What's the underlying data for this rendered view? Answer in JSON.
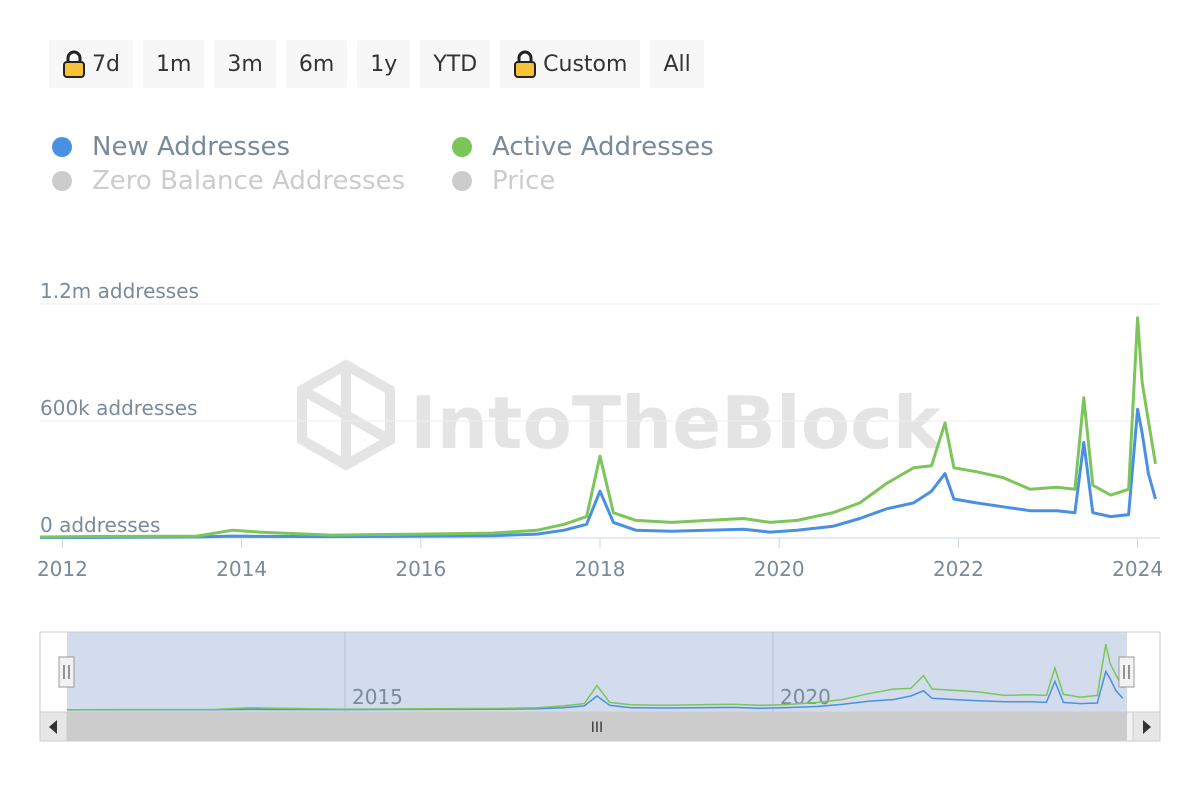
{
  "range_selector": {
    "buttons": [
      {
        "label": "7d",
        "locked": true
      },
      {
        "label": "1m",
        "locked": false
      },
      {
        "label": "3m",
        "locked": false
      },
      {
        "label": "6m",
        "locked": false
      },
      {
        "label": "1y",
        "locked": false
      },
      {
        "label": "YTD",
        "locked": false
      },
      {
        "label": "Custom",
        "locked": true
      },
      {
        "label": "All",
        "locked": false
      }
    ]
  },
  "legend": {
    "items": [
      {
        "label": "New Addresses",
        "color": "#4a90e2",
        "visible": true
      },
      {
        "label": "Active Addresses",
        "color": "#7cc55a",
        "visible": true
      },
      {
        "label": "Zero Balance Addresses",
        "color": "#cccccc",
        "visible": false
      },
      {
        "label": "Price",
        "color": "#cccccc",
        "visible": false
      }
    ]
  },
  "watermark": "IntoTheBlock",
  "navigator": {
    "labels": [
      "2015",
      "2020"
    ],
    "scroll_grip": "III"
  },
  "chart_data": {
    "type": "line",
    "ylim": [
      0,
      1200000
    ],
    "y_ticks": [
      {
        "value": 0,
        "label": "0 addresses"
      },
      {
        "value": 600000,
        "label": "600k addresses"
      },
      {
        "value": 1200000,
        "label": "1.2m addresses"
      }
    ],
    "x_ticks": [
      "2012",
      "2014",
      "2016",
      "2018",
      "2020",
      "2022",
      "2024"
    ],
    "xlim": [
      2011.75,
      2024.25
    ],
    "grid": true,
    "legend_position": "top-left",
    "series": [
      {
        "name": "New Addresses",
        "color": "#4a90e2",
        "x": [
          2011.75,
          2012.5,
          2013.5,
          2013.9,
          2014.2,
          2015.0,
          2016.0,
          2016.8,
          2017.3,
          2017.6,
          2017.85,
          2018.0,
          2018.15,
          2018.4,
          2018.8,
          2019.2,
          2019.6,
          2019.9,
          2020.2,
          2020.6,
          2020.9,
          2021.2,
          2021.5,
          2021.7,
          2021.85,
          2021.95,
          2022.2,
          2022.5,
          2022.8,
          2023.1,
          2023.3,
          2023.4,
          2023.5,
          2023.7,
          2023.9,
          2024.0,
          2024.05,
          2024.12,
          2024.2
        ],
        "y": [
          2000,
          3000,
          5000,
          10000,
          8000,
          7000,
          10000,
          12000,
          20000,
          40000,
          70000,
          240000,
          80000,
          40000,
          35000,
          40000,
          45000,
          30000,
          40000,
          60000,
          100000,
          150000,
          180000,
          240000,
          330000,
          200000,
          180000,
          160000,
          140000,
          140000,
          130000,
          490000,
          130000,
          110000,
          120000,
          660000,
          540000,
          330000,
          200000
        ]
      },
      {
        "name": "Active Addresses",
        "color": "#7cc55a",
        "x": [
          2011.75,
          2012.5,
          2013.5,
          2013.9,
          2014.2,
          2015.0,
          2016.0,
          2016.8,
          2017.3,
          2017.6,
          2017.85,
          2018.0,
          2018.15,
          2018.4,
          2018.8,
          2019.2,
          2019.6,
          2019.9,
          2020.2,
          2020.6,
          2020.9,
          2021.2,
          2021.5,
          2021.7,
          2021.85,
          2021.95,
          2022.2,
          2022.5,
          2022.8,
          2023.1,
          2023.3,
          2023.4,
          2023.5,
          2023.7,
          2023.9,
          2024.0,
          2024.05,
          2024.12,
          2024.2
        ],
        "y": [
          5000,
          8000,
          10000,
          40000,
          30000,
          15000,
          20000,
          25000,
          40000,
          70000,
          110000,
          420000,
          130000,
          90000,
          80000,
          90000,
          100000,
          80000,
          90000,
          130000,
          180000,
          280000,
          360000,
          370000,
          590000,
          360000,
          340000,
          310000,
          250000,
          260000,
          250000,
          720000,
          270000,
          220000,
          250000,
          1130000,
          800000,
          600000,
          380000
        ]
      }
    ]
  }
}
